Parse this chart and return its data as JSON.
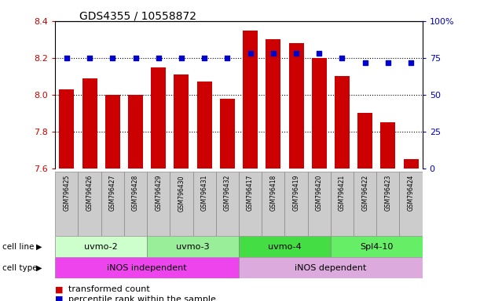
{
  "title": "GDS4355 / 10558872",
  "samples": [
    "GSM796425",
    "GSM796426",
    "GSM796427",
    "GSM796428",
    "GSM796429",
    "GSM796430",
    "GSM796431",
    "GSM796432",
    "GSM796417",
    "GSM796418",
    "GSM796419",
    "GSM796420",
    "GSM796421",
    "GSM796422",
    "GSM796423",
    "GSM796424"
  ],
  "bar_values": [
    8.03,
    8.09,
    8.0,
    8.0,
    8.15,
    8.11,
    8.07,
    7.98,
    8.35,
    8.3,
    8.28,
    8.2,
    8.1,
    7.9,
    7.85,
    7.65
  ],
  "percentile_values": [
    75,
    75,
    75,
    75,
    75,
    75,
    75,
    75,
    78,
    78,
    78,
    78,
    75,
    72,
    72,
    72
  ],
  "ymin": 7.6,
  "ymax": 8.4,
  "yticks": [
    7.6,
    7.8,
    8.0,
    8.2,
    8.4
  ],
  "right_yticks": [
    0,
    25,
    50,
    75,
    100
  ],
  "bar_color": "#cc0000",
  "dot_color": "#0000cc",
  "bar_bottom": 7.6,
  "cell_line_groups": [
    {
      "label": "uvmo-2",
      "start": 0,
      "end": 3,
      "color": "#ccffcc"
    },
    {
      "label": "uvmo-3",
      "start": 4,
      "end": 7,
      "color": "#99ee99"
    },
    {
      "label": "uvmo-4",
      "start": 8,
      "end": 11,
      "color": "#44dd44"
    },
    {
      "label": "Spl4-10",
      "start": 12,
      "end": 15,
      "color": "#66ee66"
    }
  ],
  "cell_type_groups": [
    {
      "label": "iNOS independent",
      "start": 0,
      "end": 7,
      "color": "#ee44ee"
    },
    {
      "label": "iNOS dependent",
      "start": 8,
      "end": 15,
      "color": "#ddaadd"
    }
  ],
  "legend_items": [
    {
      "label": "transformed count",
      "color": "#cc0000"
    },
    {
      "label": "percentile rank within the sample",
      "color": "#0000cc"
    }
  ],
  "sample_box_color": "#cccccc",
  "bg_color": "#ffffff",
  "title_fontsize": 10,
  "axis_label_fontsize": 8,
  "legend_fontsize": 8,
  "group_label_fontsize": 8
}
